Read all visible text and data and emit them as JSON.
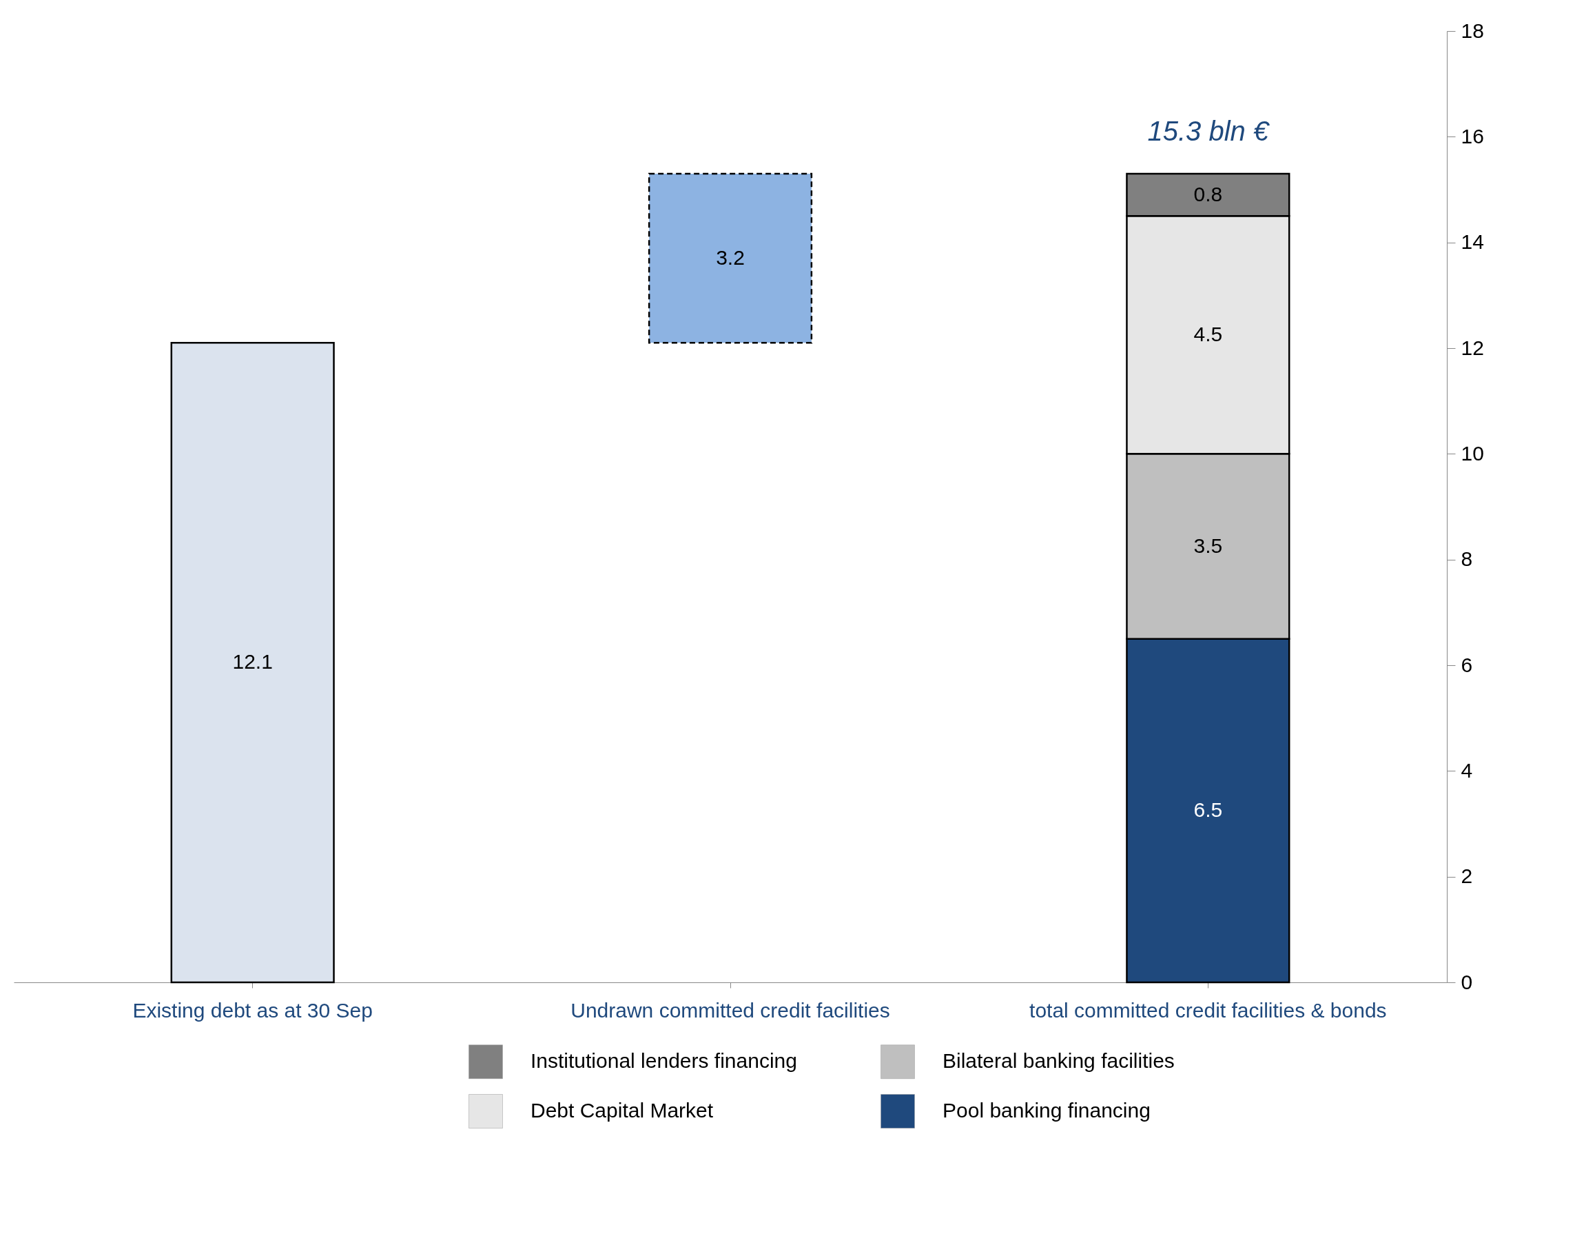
{
  "chart_data": {
    "type": "bar",
    "stacked": true,
    "categories": [
      "Existing debt as at 30 Sep",
      "Undrawn committed credit facilities",
      "total committed credit facilities & bonds"
    ],
    "series": [
      {
        "color": "#dbe3ee",
        "values": [
          12.1,
          null,
          null
        ]
      },
      {
        "color": "#8db3e2",
        "line_style": "dashed",
        "base": [
          null,
          12.1,
          null
        ],
        "values": [
          null,
          3.2,
          null
        ]
      },
      {
        "name": "Pool banking financing",
        "color": "#1f497d",
        "values": [
          null,
          null,
          6.5
        ]
      },
      {
        "name": "Bilateral banking facilities",
        "color": "#bfbfbf",
        "values": [
          null,
          null,
          3.5
        ]
      },
      {
        "name": "Debt Capital Market",
        "color": "#e6e6e6",
        "values": [
          null,
          null,
          4.5
        ]
      },
      {
        "name": "Institutional lenders financing",
        "color": "#808080",
        "values": [
          null,
          null,
          0.8
        ]
      }
    ],
    "totals": [
      null,
      null,
      "15.3 bln €"
    ],
    "data_labels": true,
    "ylim": [
      0,
      18
    ],
    "yticks": [
      0,
      2,
      4,
      6,
      8,
      10,
      12,
      14,
      16,
      18
    ],
    "grid": false,
    "legend": "bottom"
  }
}
